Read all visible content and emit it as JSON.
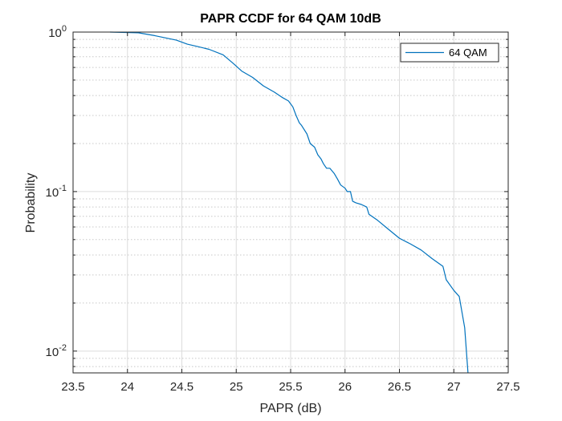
{
  "chart_data": {
    "type": "line",
    "title": "PAPR CCDF for 64 QAM 10dB",
    "xlabel": "PAPR (dB)",
    "ylabel": "Probability",
    "xlim": [
      23.5,
      27.5
    ],
    "ylim": [
      0.0073,
      1.0
    ],
    "yscale": "log",
    "grid": true,
    "legend_position": "top-right",
    "x_ticks": [
      {
        "value": 23.5,
        "label": "23.5"
      },
      {
        "value": 24,
        "label": "24"
      },
      {
        "value": 24.5,
        "label": "24.5"
      },
      {
        "value": 25,
        "label": "25"
      },
      {
        "value": 25.5,
        "label": "25.5"
      },
      {
        "value": 26,
        "label": "26"
      },
      {
        "value": 26.5,
        "label": "26.5"
      },
      {
        "value": 27,
        "label": "27"
      },
      {
        "value": 27.5,
        "label": "27.5"
      }
    ],
    "y_ticks": [
      {
        "value": 1,
        "base": "10",
        "exp": "0"
      },
      {
        "value": 0.1,
        "base": "10",
        "exp": "-1"
      },
      {
        "value": 0.01,
        "base": "10",
        "exp": "-2"
      }
    ],
    "series": [
      {
        "name": "64 QAM",
        "color": "#0072BD",
        "x": [
          23.84,
          24.1,
          24.25,
          24.45,
          24.55,
          24.65,
          24.75,
          24.88,
          24.98,
          25.05,
          25.15,
          25.25,
          25.35,
          25.42,
          25.48,
          25.52,
          25.55,
          25.58,
          25.6,
          25.65,
          25.68,
          25.72,
          25.75,
          25.78,
          25.8,
          25.83,
          25.86,
          25.9,
          25.93,
          25.96,
          26.0,
          26.02,
          26.05,
          26.07,
          26.1,
          26.15,
          26.2,
          26.22,
          26.3,
          26.4,
          26.5,
          26.6,
          26.7,
          26.8,
          26.9,
          26.93,
          27.0,
          27.05,
          27.1,
          27.13
        ],
        "y": [
          1.0,
          0.99,
          0.95,
          0.89,
          0.84,
          0.81,
          0.78,
          0.72,
          0.63,
          0.57,
          0.52,
          0.46,
          0.42,
          0.39,
          0.37,
          0.34,
          0.3,
          0.27,
          0.26,
          0.23,
          0.2,
          0.19,
          0.17,
          0.16,
          0.15,
          0.14,
          0.14,
          0.13,
          0.12,
          0.11,
          0.105,
          0.1,
          0.1,
          0.087,
          0.085,
          0.083,
          0.08,
          0.072,
          0.066,
          0.058,
          0.051,
          0.047,
          0.043,
          0.038,
          0.034,
          0.028,
          0.024,
          0.022,
          0.014,
          0.0073
        ]
      }
    ]
  }
}
